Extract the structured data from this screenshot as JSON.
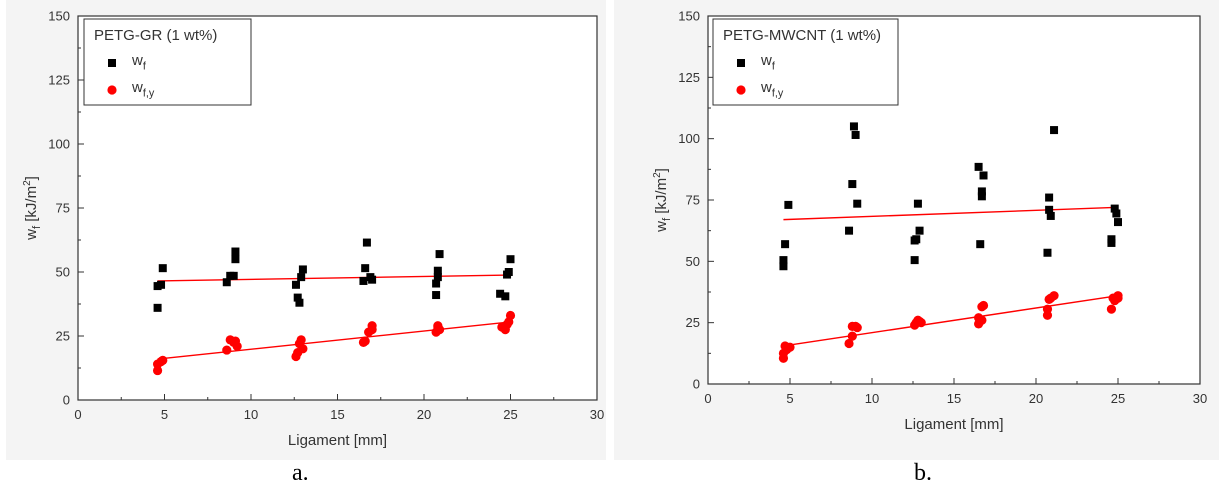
{
  "chart_data": [
    {
      "panel_label": "a.",
      "type": "scatter",
      "title": "PETG-GR (1 wt%)",
      "xlabel": "Ligament [mm]",
      "ylabel": "w_f [kJ/m^2]",
      "xlim": [
        0,
        30
      ],
      "ylim": [
        0,
        150
      ],
      "xticks": [
        "0",
        "5",
        "10",
        "15",
        "20",
        "25",
        "30"
      ],
      "yticks": [
        "0",
        "25",
        "50",
        "75",
        "100",
        "125",
        "150"
      ],
      "legend_position": "top-left",
      "grid": false,
      "series": [
        {
          "name": "w_f",
          "marker": "square",
          "color": "#000000",
          "points": [
            [
              4.6,
              36
            ],
            [
              4.6,
              44.5
            ],
            [
              4.8,
              45
            ],
            [
              4.9,
              51.5
            ],
            [
              8.6,
              46
            ],
            [
              8.8,
              48.5
            ],
            [
              9.0,
              48.5
            ],
            [
              9.1,
              55
            ],
            [
              9.1,
              58
            ],
            [
              12.6,
              45
            ],
            [
              12.7,
              40
            ],
            [
              12.8,
              38
            ],
            [
              12.9,
              48
            ],
            [
              13.0,
              51
            ],
            [
              16.5,
              46.5
            ],
            [
              16.6,
              51.5
            ],
            [
              16.7,
              61.5
            ],
            [
              16.9,
              48
            ],
            [
              17.0,
              47
            ],
            [
              20.7,
              41
            ],
            [
              20.7,
              45.5
            ],
            [
              20.8,
              48
            ],
            [
              20.8,
              50.5
            ],
            [
              20.9,
              57
            ],
            [
              24.4,
              41.5
            ],
            [
              24.7,
              40.5
            ],
            [
              24.8,
              49
            ],
            [
              24.9,
              50
            ],
            [
              25.0,
              55
            ]
          ]
        },
        {
          "name": "w_f,y",
          "marker": "circle",
          "color": "#ff0000",
          "points": [
            [
              4.6,
              11.5
            ],
            [
              4.6,
              14
            ],
            [
              4.8,
              15
            ],
            [
              4.9,
              15.5
            ],
            [
              8.6,
              19.5
            ],
            [
              8.8,
              23.5
            ],
            [
              9.0,
              22.5
            ],
            [
              9.1,
              23
            ],
            [
              9.2,
              21
            ],
            [
              12.6,
              17
            ],
            [
              12.7,
              18.5
            ],
            [
              12.8,
              22
            ],
            [
              12.9,
              23.5
            ],
            [
              13.0,
              20
            ],
            [
              16.5,
              22.5
            ],
            [
              16.6,
              23
            ],
            [
              16.8,
              26.5
            ],
            [
              17.0,
              27.5
            ],
            [
              17.0,
              29
            ],
            [
              20.7,
              26.5
            ],
            [
              20.8,
              28.5
            ],
            [
              20.8,
              29
            ],
            [
              20.9,
              27.5
            ],
            [
              24.5,
              28.5
            ],
            [
              24.7,
              27.5
            ],
            [
              24.8,
              29.5
            ],
            [
              24.9,
              30.5
            ],
            [
              25.0,
              33
            ]
          ]
        }
      ],
      "fit_lines": [
        {
          "series": "w_f",
          "color": "#ff0000",
          "x": [
            4.6,
            25.0
          ],
          "y": [
            46.5,
            48.8
          ]
        },
        {
          "series": "w_f,y",
          "color": "#ff0000",
          "x": [
            4.6,
            25.0
          ],
          "y": [
            16.0,
            30.5
          ]
        }
      ]
    },
    {
      "panel_label": "b.",
      "type": "scatter",
      "title": "PETG-MWCNT (1 wt%)",
      "xlabel": "Ligament [mm]",
      "ylabel": "w_f [kJ/m^2]",
      "xlim": [
        0,
        30
      ],
      "ylim": [
        0,
        150
      ],
      "xticks": [
        "0",
        "5",
        "10",
        "15",
        "20",
        "25",
        "30"
      ],
      "yticks": [
        "0",
        "25",
        "50",
        "75",
        "100",
        "125",
        "150"
      ],
      "legend_position": "top-left",
      "grid": false,
      "series": [
        {
          "name": "w_f",
          "marker": "square",
          "color": "#000000",
          "points": [
            [
              4.6,
              48
            ],
            [
              4.6,
              50.5
            ],
            [
              4.7,
              57
            ],
            [
              4.9,
              73
            ],
            [
              8.6,
              62.5
            ],
            [
              8.8,
              81.5
            ],
            [
              8.9,
              105
            ],
            [
              9.0,
              101.5
            ],
            [
              9.1,
              73.5
            ],
            [
              12.6,
              50.5
            ],
            [
              12.6,
              58.5
            ],
            [
              12.7,
              59
            ],
            [
              12.8,
              73.5
            ],
            [
              12.9,
              62.5
            ],
            [
              16.5,
              88.5
            ],
            [
              16.6,
              57
            ],
            [
              16.7,
              76.5
            ],
            [
              16.7,
              78.5
            ],
            [
              16.8,
              85
            ],
            [
              20.7,
              53.5
            ],
            [
              20.8,
              76
            ],
            [
              20.8,
              71
            ],
            [
              20.9,
              68.5
            ],
            [
              21.1,
              103.5
            ],
            [
              24.6,
              57.5
            ],
            [
              24.6,
              59
            ],
            [
              24.8,
              71.5
            ],
            [
              24.9,
              69.5
            ],
            [
              25.0,
              66
            ]
          ]
        },
        {
          "name": "w_f,y",
          "marker": "circle",
          "color": "#ff0000",
          "points": [
            [
              4.6,
              10.5
            ],
            [
              4.6,
              12.5
            ],
            [
              4.7,
              15.5
            ],
            [
              4.8,
              14
            ],
            [
              5.0,
              15
            ],
            [
              8.6,
              16.5
            ],
            [
              8.8,
              19.5
            ],
            [
              8.8,
              23.5
            ],
            [
              9.0,
              23.5
            ],
            [
              9.1,
              23
            ],
            [
              12.6,
              24
            ],
            [
              12.7,
              25
            ],
            [
              12.8,
              26
            ],
            [
              12.9,
              25.5
            ],
            [
              13.0,
              25
            ],
            [
              16.5,
              27
            ],
            [
              16.5,
              24.5
            ],
            [
              16.7,
              26
            ],
            [
              16.7,
              31.5
            ],
            [
              16.8,
              32
            ],
            [
              20.7,
              28
            ],
            [
              20.7,
              30.5
            ],
            [
              20.8,
              34.5
            ],
            [
              20.9,
              35
            ],
            [
              21.1,
              36
            ],
            [
              24.6,
              30.5
            ],
            [
              24.7,
              35
            ],
            [
              24.8,
              34
            ],
            [
              25.0,
              35
            ],
            [
              25.0,
              36
            ]
          ]
        }
      ],
      "fit_lines": [
        {
          "series": "w_f",
          "color": "#ff0000",
          "x": [
            4.6,
            25.0
          ],
          "y": [
            67.0,
            72.0
          ]
        },
        {
          "series": "w_f,y",
          "color": "#ff0000",
          "x": [
            4.6,
            25.0
          ],
          "y": [
            15.5,
            36.0
          ]
        }
      ]
    }
  ]
}
